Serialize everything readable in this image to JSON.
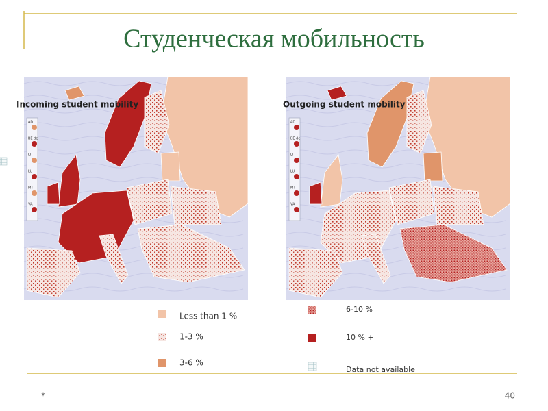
{
  "title": "Студенческая мобильность",
  "maps": [
    {
      "label": "Incoming student mobility"
    },
    {
      "label": "Outgoing student mobility"
    }
  ],
  "inset_codes": [
    "AD",
    "BE de",
    "LI",
    "LU",
    "MT",
    "VA"
  ],
  "legend": [
    {
      "label": "Less than 1 %"
    },
    {
      "label": "1-3 %"
    },
    {
      "label": "3-6 %"
    },
    {
      "label": "6-10 %"
    },
    {
      "label": "10 % +"
    },
    {
      "label": "Data not available"
    }
  ],
  "footer": {
    "mark": "*",
    "page": "40"
  }
}
